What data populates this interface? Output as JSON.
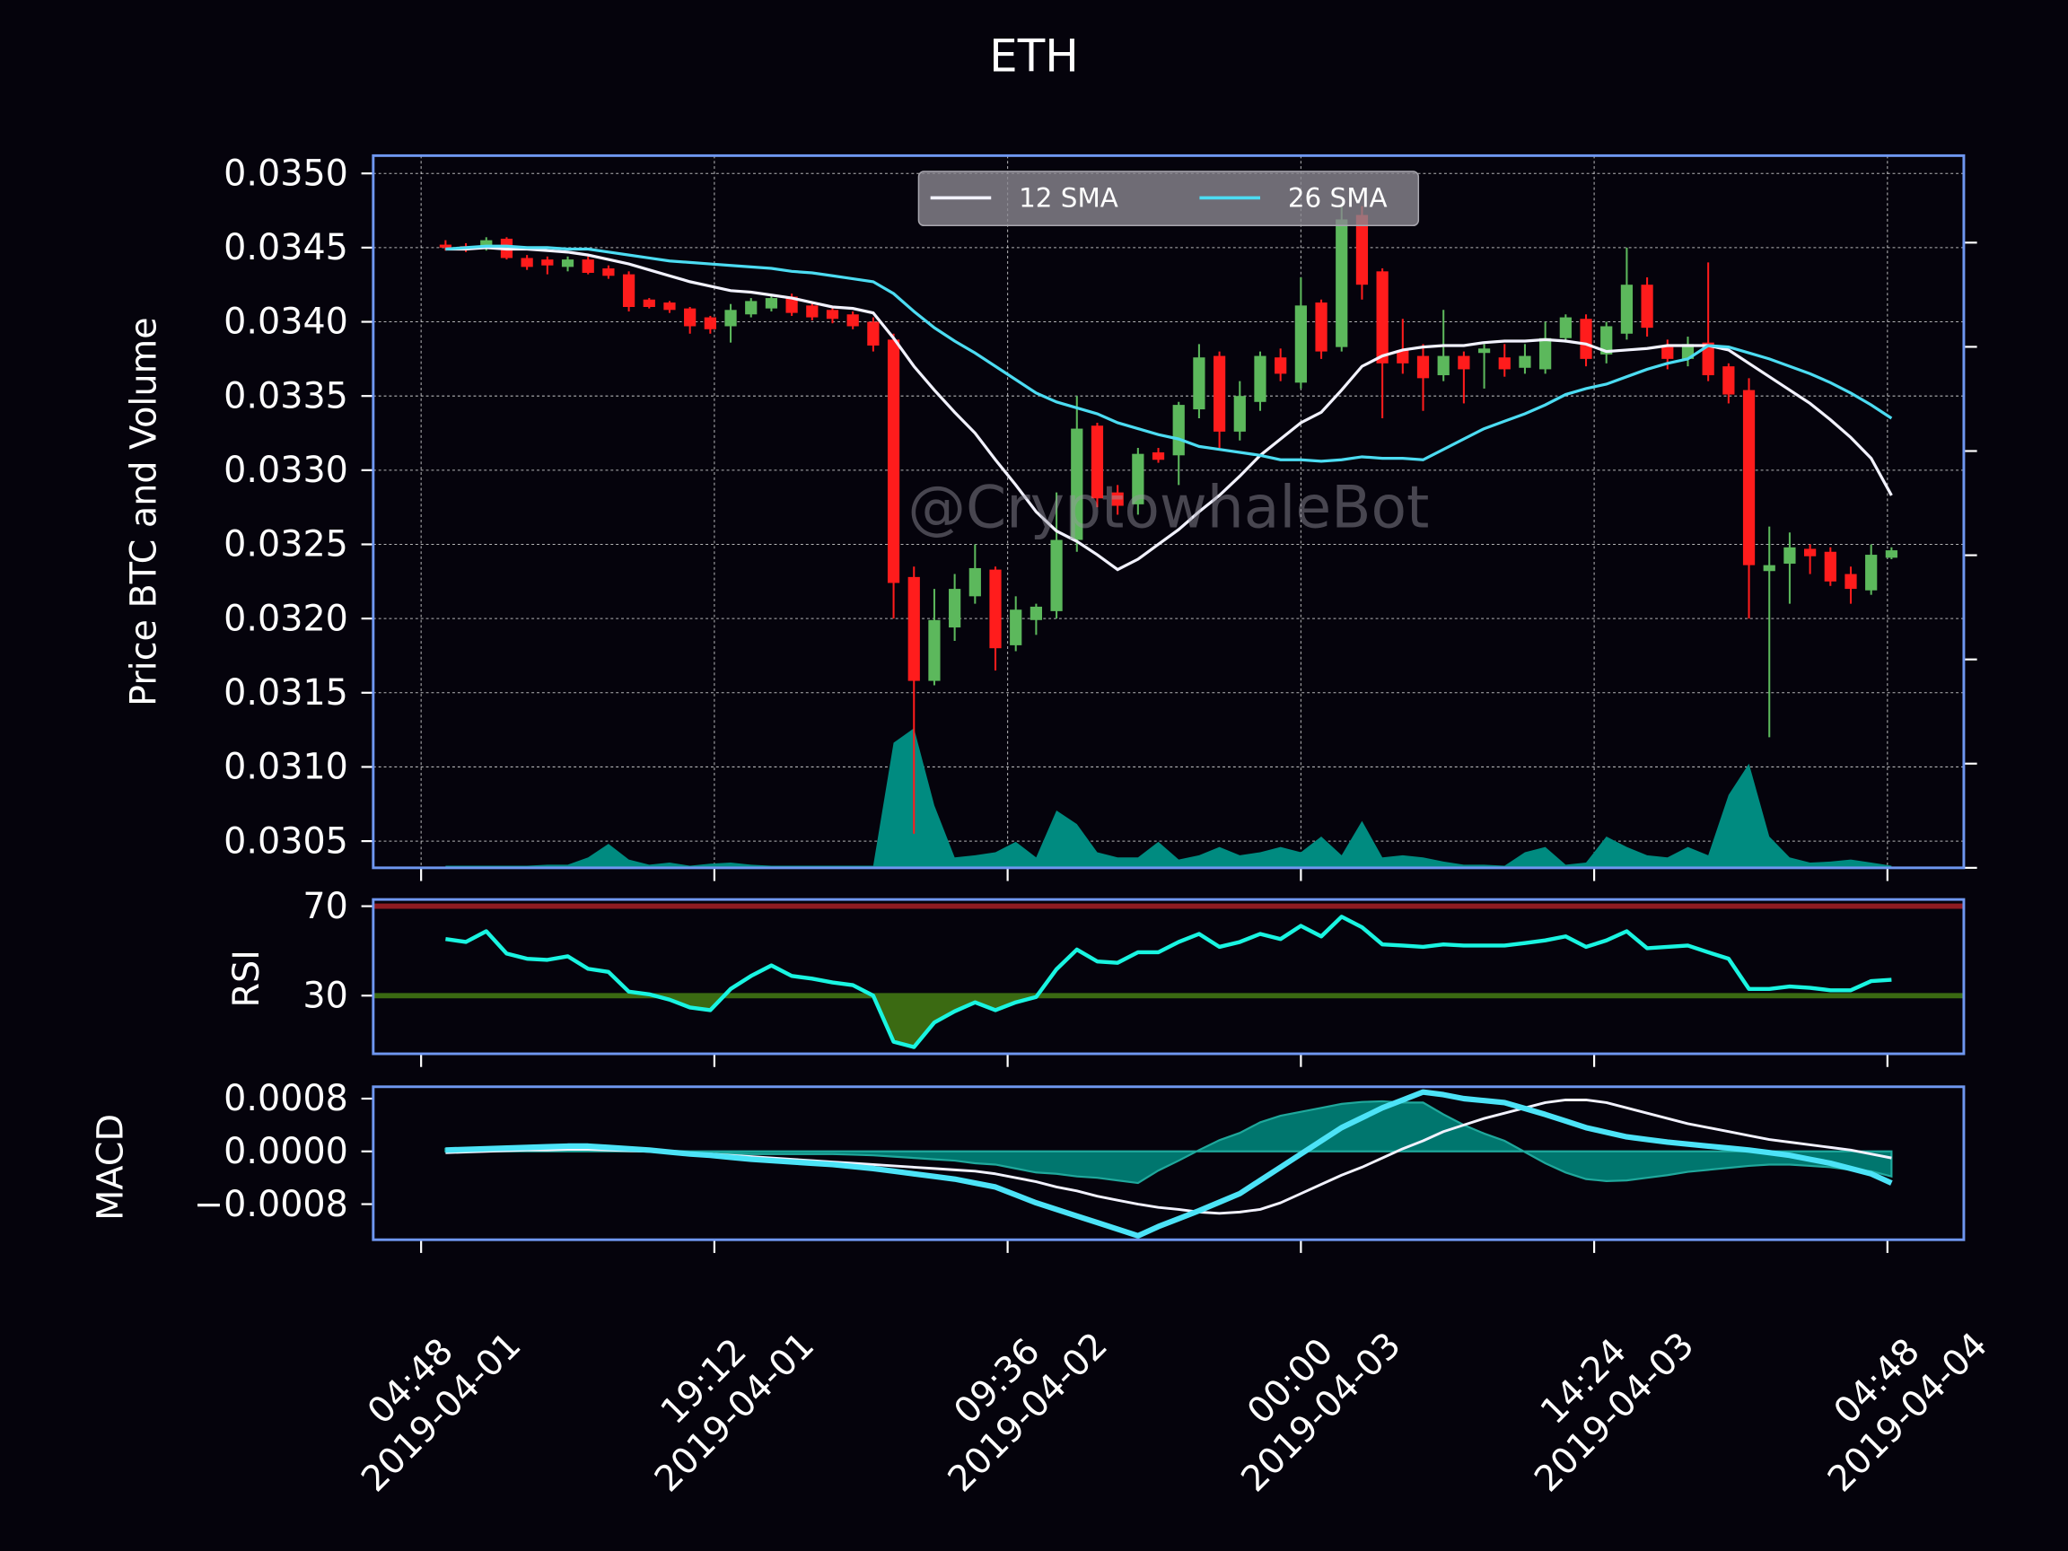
{
  "chart_data": [
    {
      "type": "candlestick",
      "title": "ETH",
      "ylabel": "Price BTC and Volume",
      "watermark": "@CryptowhaleBot",
      "x": [
        "2019-04-01 06:00",
        "2019-04-01 07:00",
        "2019-04-01 08:00",
        "2019-04-01 09:00",
        "2019-04-01 10:00",
        "2019-04-01 11:00",
        "2019-04-01 12:00",
        "2019-04-01 13:00",
        "2019-04-01 14:00",
        "2019-04-01 15:00",
        "2019-04-01 16:00",
        "2019-04-01 17:00",
        "2019-04-01 18:00",
        "2019-04-01 19:00",
        "2019-04-01 20:00",
        "2019-04-01 21:00",
        "2019-04-01 22:00",
        "2019-04-01 23:00",
        "2019-04-02 00:00",
        "2019-04-02 01:00",
        "2019-04-02 02:00",
        "2019-04-02 03:00",
        "2019-04-02 04:00",
        "2019-04-02 05:00",
        "2019-04-02 06:00",
        "2019-04-02 07:00",
        "2019-04-02 08:00",
        "2019-04-02 09:00",
        "2019-04-02 10:00",
        "2019-04-02 11:00",
        "2019-04-02 12:00",
        "2019-04-02 13:00",
        "2019-04-02 14:00",
        "2019-04-02 15:00",
        "2019-04-02 16:00",
        "2019-04-02 17:00",
        "2019-04-02 18:00",
        "2019-04-02 19:00",
        "2019-04-02 20:00",
        "2019-04-02 21:00",
        "2019-04-02 22:00",
        "2019-04-02 23:00",
        "2019-04-03 00:00",
        "2019-04-03 01:00",
        "2019-04-03 02:00",
        "2019-04-03 03:00",
        "2019-04-03 04:00",
        "2019-04-03 05:00",
        "2019-04-03 06:00",
        "2019-04-03 07:00",
        "2019-04-03 08:00",
        "2019-04-03 09:00",
        "2019-04-03 10:00",
        "2019-04-03 11:00",
        "2019-04-03 12:00",
        "2019-04-03 13:00",
        "2019-04-03 14:00",
        "2019-04-03 15:00",
        "2019-04-03 16:00",
        "2019-04-03 17:00",
        "2019-04-03 18:00",
        "2019-04-03 19:00",
        "2019-04-03 20:00",
        "2019-04-03 21:00",
        "2019-04-03 22:00",
        "2019-04-03 23:00",
        "2019-04-04 00:00",
        "2019-04-04 01:00",
        "2019-04-04 02:00",
        "2019-04-04 03:00",
        "2019-04-04 04:00",
        "2019-04-04 05:00"
      ],
      "open": [
        0.03452,
        0.03451,
        0.0345,
        0.03456,
        0.03443,
        0.03442,
        0.03437,
        0.03442,
        0.03436,
        0.03432,
        0.03415,
        0.03413,
        0.03409,
        0.03403,
        0.03397,
        0.03405,
        0.03409,
        0.03417,
        0.03411,
        0.03408,
        0.03405,
        0.034,
        0.03388,
        0.03228,
        0.03158,
        0.03194,
        0.03215,
        0.03233,
        0.03182,
        0.03199,
        0.03205,
        0.03253,
        0.0333,
        0.03285,
        0.03277,
        0.03312,
        0.0331,
        0.03341,
        0.03377,
        0.03326,
        0.03346,
        0.03376,
        0.03359,
        0.03413,
        0.03383,
        0.03472,
        0.03434,
        0.03381,
        0.03377,
        0.03364,
        0.03377,
        0.03379,
        0.03376,
        0.03369,
        0.03368,
        0.03389,
        0.03402,
        0.03378,
        0.03392,
        0.03425,
        0.03383,
        0.03375,
        0.03386,
        0.0337,
        0.03354,
        0.03232,
        0.03237,
        0.03247,
        0.03245,
        0.0323,
        0.03219,
        0.03241
      ],
      "high": [
        0.03455,
        0.03453,
        0.03457,
        0.03457,
        0.03445,
        0.03444,
        0.03444,
        0.03444,
        0.03438,
        0.03434,
        0.03416,
        0.03414,
        0.0341,
        0.03404,
        0.03412,
        0.03416,
        0.03418,
        0.03419,
        0.03413,
        0.0341,
        0.03407,
        0.03403,
        0.03392,
        0.03235,
        0.0322,
        0.0323,
        0.0325,
        0.03235,
        0.03215,
        0.0321,
        0.03285,
        0.0335,
        0.03332,
        0.0329,
        0.03315,
        0.03315,
        0.03346,
        0.03385,
        0.0338,
        0.0336,
        0.0338,
        0.03382,
        0.0343,
        0.03415,
        0.0348,
        0.03478,
        0.03436,
        0.03402,
        0.03385,
        0.03408,
        0.0338,
        0.03385,
        0.03385,
        0.03385,
        0.034,
        0.03405,
        0.03405,
        0.034,
        0.0345,
        0.0343,
        0.03388,
        0.0339,
        0.0344,
        0.03372,
        0.03362,
        0.03262,
        0.03258,
        0.0325,
        0.03248,
        0.03235,
        0.0325,
        0.03248
      ],
      "low": [
        0.03448,
        0.03447,
        0.03448,
        0.03442,
        0.03435,
        0.03432,
        0.03434,
        0.03432,
        0.03429,
        0.03407,
        0.03409,
        0.03406,
        0.03392,
        0.03392,
        0.03386,
        0.03403,
        0.03407,
        0.03404,
        0.03401,
        0.03399,
        0.03395,
        0.0338,
        0.032,
        0.03055,
        0.03155,
        0.03185,
        0.0321,
        0.03165,
        0.03178,
        0.03189,
        0.032,
        0.03245,
        0.03275,
        0.0327,
        0.0327,
        0.03305,
        0.0329,
        0.03335,
        0.03315,
        0.0332,
        0.0334,
        0.0336,
        0.03355,
        0.03375,
        0.0338,
        0.03415,
        0.03335,
        0.03365,
        0.0334,
        0.0336,
        0.03345,
        0.03355,
        0.03363,
        0.03365,
        0.03365,
        0.03386,
        0.0337,
        0.03372,
        0.03388,
        0.0339,
        0.03368,
        0.0337,
        0.0336,
        0.03345,
        0.032,
        0.0312,
        0.0321,
        0.0323,
        0.03222,
        0.0321,
        0.03216,
        0.0324
      ],
      "close": [
        0.0345,
        0.03449,
        0.03455,
        0.03443,
        0.03437,
        0.03438,
        0.03442,
        0.03433,
        0.03431,
        0.0341,
        0.0341,
        0.03408,
        0.03397,
        0.03395,
        0.03408,
        0.03414,
        0.03416,
        0.03406,
        0.03403,
        0.03402,
        0.03397,
        0.03384,
        0.03224,
        0.03158,
        0.03199,
        0.0322,
        0.03234,
        0.0318,
        0.03206,
        0.03208,
        0.03253,
        0.03328,
        0.03281,
        0.03276,
        0.03311,
        0.03307,
        0.03344,
        0.03376,
        0.03326,
        0.0335,
        0.03377,
        0.03365,
        0.03411,
        0.0338,
        0.03469,
        0.03425,
        0.03372,
        0.03372,
        0.03362,
        0.03377,
        0.03368,
        0.03382,
        0.03368,
        0.03377,
        0.03389,
        0.03403,
        0.03375,
        0.03397,
        0.03425,
        0.03396,
        0.03375,
        0.03385,
        0.03364,
        0.03351,
        0.03236,
        0.03236,
        0.03248,
        0.03242,
        0.03225,
        0.0322,
        0.03243,
        0.03246
      ],
      "up_color": "#5cb85c",
      "down_color": "#ff1c1c",
      "series": [
        {
          "name": "12 SMA",
          "color": "#f2f2ff",
          "values": [
            0.03449,
            0.03449,
            0.0345,
            0.03449,
            0.03449,
            0.03448,
            0.03447,
            0.03445,
            0.03442,
            0.03439,
            0.03435,
            0.03431,
            0.03427,
            0.03424,
            0.03421,
            0.0342,
            0.03418,
            0.03416,
            0.03413,
            0.0341,
            0.03409,
            0.03406,
            0.03389,
            0.0337,
            0.03354,
            0.03339,
            0.03325,
            0.03307,
            0.0329,
            0.03272,
            0.03259,
            0.03252,
            0.03243,
            0.03233,
            0.0324,
            0.0325,
            0.0326,
            0.03272,
            0.03283,
            0.03296,
            0.0331,
            0.03321,
            0.03332,
            0.03339,
            0.03354,
            0.0337,
            0.03377,
            0.03381,
            0.03383,
            0.03384,
            0.03384,
            0.03386,
            0.03387,
            0.03387,
            0.03388,
            0.03387,
            0.03385,
            0.0338,
            0.03381,
            0.03382,
            0.03384,
            0.03384,
            0.03384,
            0.03381,
            0.03372,
            0.03363,
            0.03354,
            0.03345,
            0.03334,
            0.03322,
            0.03308,
            0.03283
          ]
        },
        {
          "name": "26 SMA",
          "color": "#4cdcf2",
          "values": [
            0.03449,
            0.0345,
            0.03451,
            0.03451,
            0.0345,
            0.0345,
            0.03449,
            0.03449,
            0.03447,
            0.03445,
            0.03443,
            0.03441,
            0.0344,
            0.03439,
            0.03438,
            0.03437,
            0.03436,
            0.03434,
            0.03433,
            0.03431,
            0.03429,
            0.03427,
            0.03419,
            0.03407,
            0.03396,
            0.03387,
            0.03379,
            0.0337,
            0.03361,
            0.03352,
            0.03346,
            0.03342,
            0.03338,
            0.03332,
            0.03328,
            0.03324,
            0.03321,
            0.03316,
            0.03314,
            0.03312,
            0.0331,
            0.03307,
            0.03307,
            0.03306,
            0.03307,
            0.03309,
            0.03308,
            0.03308,
            0.03307,
            0.03314,
            0.03321,
            0.03328,
            0.03333,
            0.03338,
            0.03344,
            0.03351,
            0.03355,
            0.03358,
            0.03363,
            0.03368,
            0.03372,
            0.03375,
            0.03384,
            0.03383,
            0.03379,
            0.03375,
            0.0337,
            0.03365,
            0.03359,
            0.03352,
            0.03344,
            0.03335
          ]
        }
      ],
      "volume": {
        "color": "#008b80",
        "axis": "y2",
        "values": [
          0.02,
          0.02,
          0.02,
          0.02,
          0.02,
          0.03,
          0.03,
          0.1,
          0.23,
          0.08,
          0.03,
          0.05,
          0.02,
          0.04,
          0.05,
          0.03,
          0.02,
          0.02,
          0.02,
          0.02,
          0.02,
          0.02,
          1.2,
          1.34,
          0.6,
          0.1,
          0.12,
          0.15,
          0.25,
          0.1,
          0.55,
          0.42,
          0.15,
          0.1,
          0.1,
          0.25,
          0.08,
          0.12,
          0.2,
          0.12,
          0.15,
          0.2,
          0.15,
          0.3,
          0.12,
          0.45,
          0.1,
          0.12,
          0.1,
          0.06,
          0.03,
          0.03,
          0.02,
          0.15,
          0.2,
          0.03,
          0.05,
          0.3,
          0.2,
          0.12,
          0.1,
          0.2,
          0.12,
          0.7,
          1.0,
          0.3,
          0.1,
          0.05,
          0.06,
          0.08,
          0.05,
          0.02
        ]
      },
      "xlim": [
        "2019-04-01 02:27",
        "2019-04-04 08:33"
      ],
      "ylim": [
        0.03032,
        0.03512
      ],
      "yticks": [
        0.0305,
        {
          "value": 0.031,
          "label": "0.0310"
        },
        0.0315,
        {
          "value": 0.032,
          "label": "0.0320"
        },
        0.0325,
        {
          "value": 0.033,
          "label": "0.0330"
        },
        0.0335,
        {
          "value": 0.034,
          "label": "0.0340"
        },
        0.0345,
        {
          "value": 0.035,
          "label": "0.0350"
        }
      ],
      "y2lim": [
        0,
        6.835
      ],
      "y2ticks": [
        0,
        1,
        2,
        3,
        4,
        5,
        6
      ],
      "grid": true,
      "legend": "upper center"
    },
    {
      "type": "line",
      "ylabel": "RSI",
      "ylim": [
        4,
        73
      ],
      "yticks": [
        30,
        70
      ],
      "upper_band": {
        "value": 70,
        "color": "#8e1b22"
      },
      "lower_band": {
        "value": 30,
        "color": "#3b6a12"
      },
      "series": [
        {
          "color": "#19f5e1",
          "values": [
            55.3,
            54,
            58.8,
            48.8,
            46.5,
            46,
            47.6,
            42,
            40.6,
            31.8,
            30.6,
            28.2,
            24.7,
            23.5,
            33,
            38.8,
            43.5,
            38.8,
            37.6,
            35.9,
            34.7,
            30,
            9.4,
            7,
            18,
            23,
            27,
            23.5,
            27,
            29.4,
            41.8,
            50.6,
            45.3,
            44.7,
            49.4,
            49.4,
            54,
            57.6,
            51.8,
            54,
            57.6,
            55.3,
            61.2,
            56.5,
            65.3,
            60.6,
            52.9,
            52.4,
            51.8,
            52.9,
            52.4,
            52.4,
            52.4,
            53.5,
            54.7,
            56.5,
            51.8,
            54.7,
            58.8,
            51.2,
            51.8,
            52.4,
            49.4,
            46.5,
            33,
            33,
            34.1,
            33.5,
            32.4,
            32.4,
            36.5,
            37.1
          ]
        }
      ]
    },
    {
      "type": "line",
      "ylabel": "MACD",
      "ylim": [
        -0.00134,
        0.00098
      ],
      "yticks": [
        {
          "value": -0.0008,
          "label": "−0.0008"
        },
        {
          "value": 0,
          "label": "0.0000"
        },
        0.0008
      ],
      "xticks": [
        {
          "value": "2019-04-01 04:48",
          "label": [
            "04:48",
            "2019-04-01"
          ]
        },
        {
          "value": "2019-04-01 19:12",
          "label": [
            "19:12",
            "2019-04-01"
          ]
        },
        {
          "value": "2019-04-02 09:36",
          "label": [
            "09:36",
            "2019-04-02"
          ]
        },
        {
          "value": "2019-04-03 00:00",
          "label": [
            "00:00",
            "2019-04-03"
          ]
        },
        {
          "value": "2019-04-03 14:24",
          "label": [
            "14:24",
            "2019-04-03"
          ]
        },
        {
          "value": "2019-04-04 04:48",
          "label": [
            "04:48",
            "2019-04-04"
          ]
        }
      ],
      "histogram": {
        "color": "#008b80",
        "values": [
          4e-05,
          4e-05,
          4e-05,
          4e-05,
          4e-05,
          5e-05,
          5e-05,
          5e-05,
          4e-05,
          3e-05,
          2e-05,
          1e-05,
          0,
          -2e-05,
          -3e-05,
          -4e-05,
          -4e-05,
          -4e-05,
          -4e-05,
          -4e-05,
          -5e-05,
          -6e-05,
          -8e-05,
          -0.0001,
          -0.00012,
          -0.00014,
          -0.00018,
          -0.0002,
          -0.00026,
          -0.00032,
          -0.00034,
          -0.00038,
          -0.0004,
          -0.00044,
          -0.00048,
          -0.00029,
          -0.00014,
          2e-05,
          0.00017,
          0.00028,
          0.00044,
          0.00054,
          0.0006,
          0.00066,
          0.00072,
          0.00075,
          0.00076,
          0.00074,
          0.00074,
          0.00056,
          0.0004,
          0.00027,
          0.00016,
          -1e-05,
          -0.00018,
          -0.00032,
          -0.00042,
          -0.00045,
          -0.00044,
          -0.0004,
          -0.00036,
          -0.00031,
          -0.00028,
          -0.00025,
          -0.00022,
          -0.0002,
          -0.0002,
          -0.00022,
          -0.00024,
          -0.00028,
          -0.0003,
          -0.00038
        ]
      },
      "series": [
        {
          "color": "#f2f2ff",
          "values": [
            -2e-05,
            -1e-05,
            0,
            1e-05,
            2e-05,
            2e-05,
            3e-05,
            3e-05,
            2e-05,
            1e-05,
            0,
            -2e-05,
            -4e-05,
            -4e-05,
            -6e-05,
            -8e-05,
            -0.0001,
            -0.00012,
            -0.00014,
            -0.00016,
            -0.00018,
            -0.0002,
            -0.00022,
            -0.00024,
            -0.00026,
            -0.00028,
            -0.0003,
            -0.00034,
            -0.0004,
            -0.00046,
            -0.00054,
            -0.0006,
            -0.00068,
            -0.00074,
            -0.0008,
            -0.00085,
            -0.00088,
            -0.00092,
            -0.00094,
            -0.00092,
            -0.00088,
            -0.00078,
            -0.00064,
            -0.0005,
            -0.00036,
            -0.00024,
            -0.0001,
            4e-05,
            0.00016,
            0.0003,
            0.0004,
            0.0005,
            0.00058,
            0.00066,
            0.00074,
            0.00078,
            0.00078,
            0.00074,
            0.00066,
            0.00058,
            0.0005,
            0.00042,
            0.00036,
            0.0003,
            0.00024,
            0.00018,
            0.00014,
            0.0001,
            6e-05,
            2e-05,
            -4e-05,
            -0.0001
          ]
        },
        {
          "color": "#4ce3f7",
          "values": [
            2e-05,
            3e-05,
            4e-05,
            5e-05,
            6e-05,
            7e-05,
            8e-05,
            8e-05,
            6e-05,
            4e-05,
            2e-05,
            -1e-05,
            -4e-05,
            -6e-05,
            -9e-05,
            -0.00012,
            -0.00014,
            -0.00016,
            -0.00018,
            -0.0002,
            -0.00023,
            -0.00026,
            -0.0003,
            -0.00034,
            -0.00038,
            -0.00042,
            -0.00048,
            -0.00054,
            -0.00066,
            -0.00078,
            -0.00088,
            -0.00098,
            -0.00108,
            -0.00118,
            -0.00128,
            -0.00114,
            -0.00102,
            -0.0009,
            -0.00077,
            -0.00064,
            -0.00044,
            -0.00024,
            -4e-05,
            0.00016,
            0.00036,
            0.00051,
            0.00066,
            0.00078,
            0.0009,
            0.00086,
            0.0008,
            0.00077,
            0.00074,
            0.00065,
            0.00056,
            0.00046,
            0.00036,
            0.00029,
            0.00022,
            0.00018,
            0.00014,
            0.00011,
            8e-05,
            5e-05,
            2e-05,
            -2e-05,
            -6e-05,
            -0.00012,
            -0.00018,
            -0.00026,
            -0.00034,
            -0.00048
          ]
        }
      ]
    }
  ]
}
